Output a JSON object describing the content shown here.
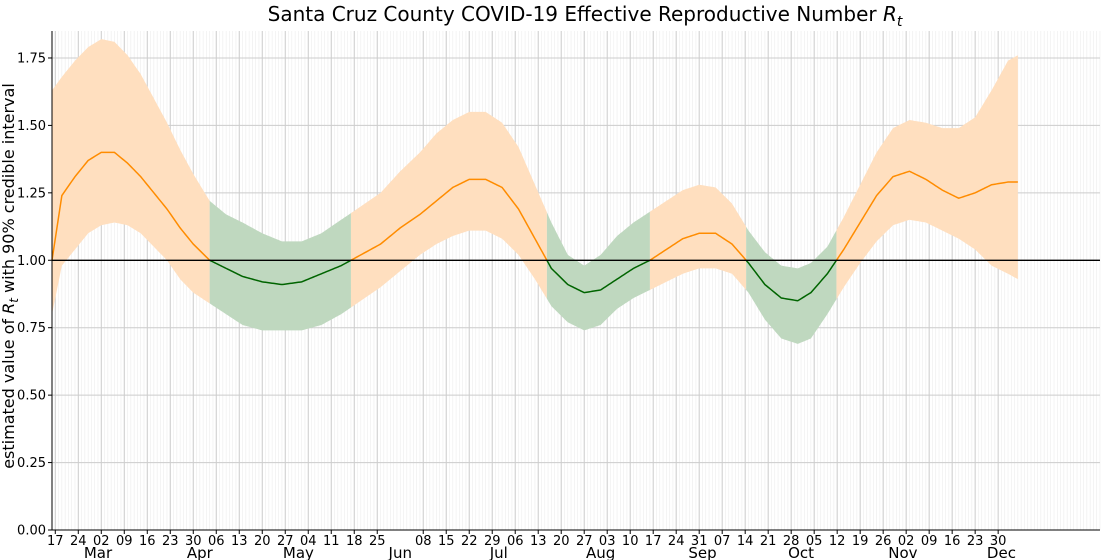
{
  "chart_data": {
    "type": "area",
    "title_prefix": "Santa Cruz County COVID-19 Effective Reproductive Number ",
    "title_symbol": "R",
    "title_subscript": "t",
    "ylabel_prefix": "estimated value of ",
    "ylabel_symbol": "R",
    "ylabel_subscript": "t",
    "ylabel_suffix": " with 90% credible interval",
    "ylim": [
      0,
      1.85
    ],
    "xlim": [
      "2020-02-16",
      "2020-12-31"
    ],
    "grid": true,
    "threshold": 1.0,
    "yticks": [
      "0.00",
      "0.25",
      "0.50",
      "0.75",
      "1.00",
      "1.25",
      "1.50",
      "1.75"
    ],
    "day_ticks": [
      {
        "date": "2020-02-17",
        "label": "17"
      },
      {
        "date": "2020-02-24",
        "label": "24"
      },
      {
        "date": "2020-03-02",
        "label": "02"
      },
      {
        "date": "2020-03-09",
        "label": "09"
      },
      {
        "date": "2020-03-16",
        "label": "16"
      },
      {
        "date": "2020-03-23",
        "label": "23"
      },
      {
        "date": "2020-03-30",
        "label": "30"
      },
      {
        "date": "2020-04-06",
        "label": "06"
      },
      {
        "date": "2020-04-13",
        "label": "13"
      },
      {
        "date": "2020-04-20",
        "label": "20"
      },
      {
        "date": "2020-04-27",
        "label": "27"
      },
      {
        "date": "2020-05-04",
        "label": "04"
      },
      {
        "date": "2020-05-11",
        "label": "11"
      },
      {
        "date": "2020-05-18",
        "label": "18"
      },
      {
        "date": "2020-05-25",
        "label": "25"
      },
      {
        "date": "2020-06-08",
        "label": "08"
      },
      {
        "date": "2020-06-15",
        "label": "15"
      },
      {
        "date": "2020-06-22",
        "label": "22"
      },
      {
        "date": "2020-06-29",
        "label": "29"
      },
      {
        "date": "2020-07-06",
        "label": "06"
      },
      {
        "date": "2020-07-13",
        "label": "13"
      },
      {
        "date": "2020-07-20",
        "label": "20"
      },
      {
        "date": "2020-07-27",
        "label": "27"
      },
      {
        "date": "2020-08-03",
        "label": "03"
      },
      {
        "date": "2020-08-10",
        "label": "10"
      },
      {
        "date": "2020-08-17",
        "label": "17"
      },
      {
        "date": "2020-08-24",
        "label": "24"
      },
      {
        "date": "2020-08-31",
        "label": "31"
      },
      {
        "date": "2020-09-07",
        "label": "07"
      },
      {
        "date": "2020-09-14",
        "label": "14"
      },
      {
        "date": "2020-09-21",
        "label": "21"
      },
      {
        "date": "2020-09-28",
        "label": "28"
      },
      {
        "date": "2020-10-05",
        "label": "05"
      },
      {
        "date": "2020-10-12",
        "label": "12"
      },
      {
        "date": "2020-10-19",
        "label": "19"
      },
      {
        "date": "2020-10-26",
        "label": "26"
      },
      {
        "date": "2020-11-02",
        "label": "02"
      },
      {
        "date": "2020-11-09",
        "label": "09"
      },
      {
        "date": "2020-11-16",
        "label": "16"
      },
      {
        "date": "2020-11-23",
        "label": "23"
      },
      {
        "date": "2020-11-30",
        "label": "30"
      }
    ],
    "month_ticks": [
      {
        "date": "2020-03-01",
        "label": "Mar"
      },
      {
        "date": "2020-04-01",
        "label": "Apr"
      },
      {
        "date": "2020-05-01",
        "label": "May"
      },
      {
        "date": "2020-06-01",
        "label": "Jun"
      },
      {
        "date": "2020-07-01",
        "label": "Jul"
      },
      {
        "date": "2020-08-01",
        "label": "Aug"
      },
      {
        "date": "2020-09-01",
        "label": "Sep"
      },
      {
        "date": "2020-10-01",
        "label": "Oct"
      },
      {
        "date": "2020-11-01",
        "label": "Nov"
      },
      {
        "date": "2020-12-01",
        "label": "Dec"
      }
    ],
    "colors": {
      "above_line": "#ff8c00",
      "above_band": "#ffdfbf",
      "below_line": "#006400",
      "below_band": "#bfd8bf",
      "threshold_line": "#000000"
    },
    "series": [
      {
        "name": "",
        "points": [
          [
            "2020-02-16",
            1.0,
            0.8,
            1.63
          ],
          [
            "2020-02-19",
            1.24,
            0.98,
            1.68
          ],
          [
            "2020-02-23",
            1.31,
            1.04,
            1.74
          ],
          [
            "2020-02-27",
            1.37,
            1.1,
            1.79
          ],
          [
            "2020-03-02",
            1.4,
            1.13,
            1.82
          ],
          [
            "2020-03-06",
            1.4,
            1.14,
            1.81
          ],
          [
            "2020-03-10",
            1.36,
            1.13,
            1.76
          ],
          [
            "2020-03-14",
            1.31,
            1.1,
            1.69
          ],
          [
            "2020-03-18",
            1.25,
            1.05,
            1.6
          ],
          [
            "2020-03-22",
            1.19,
            1.0,
            1.51
          ],
          [
            "2020-03-26",
            1.12,
            0.93,
            1.41
          ],
          [
            "2020-03-30",
            1.06,
            0.88,
            1.32
          ],
          [
            "2020-04-04",
            1.0,
            0.84,
            1.22
          ],
          [
            "2020-04-09",
            0.97,
            0.8,
            1.17
          ],
          [
            "2020-04-14",
            0.94,
            0.76,
            1.14
          ],
          [
            "2020-04-20",
            0.92,
            0.74,
            1.1
          ],
          [
            "2020-04-26",
            0.91,
            0.74,
            1.07
          ],
          [
            "2020-05-02",
            0.92,
            0.74,
            1.07
          ],
          [
            "2020-05-08",
            0.95,
            0.76,
            1.1
          ],
          [
            "2020-05-14",
            0.98,
            0.8,
            1.15
          ],
          [
            "2020-05-20",
            1.02,
            0.85,
            1.2
          ],
          [
            "2020-05-26",
            1.06,
            0.9,
            1.25
          ],
          [
            "2020-06-01",
            1.12,
            0.96,
            1.33
          ],
          [
            "2020-06-07",
            1.17,
            1.02,
            1.4
          ],
          [
            "2020-06-12",
            1.22,
            1.06,
            1.47
          ],
          [
            "2020-06-17",
            1.27,
            1.09,
            1.52
          ],
          [
            "2020-06-22",
            1.3,
            1.11,
            1.55
          ],
          [
            "2020-06-27",
            1.3,
            1.11,
            1.55
          ],
          [
            "2020-07-02",
            1.27,
            1.08,
            1.51
          ],
          [
            "2020-07-07",
            1.19,
            1.02,
            1.42
          ],
          [
            "2020-07-12",
            1.08,
            0.93,
            1.28
          ],
          [
            "2020-07-17",
            0.97,
            0.83,
            1.14
          ],
          [
            "2020-07-22",
            0.91,
            0.77,
            1.02
          ],
          [
            "2020-07-27",
            0.88,
            0.74,
            0.98
          ],
          [
            "2020-08-01",
            0.89,
            0.76,
            1.02
          ],
          [
            "2020-08-06",
            0.93,
            0.82,
            1.09
          ],
          [
            "2020-08-11",
            0.97,
            0.86,
            1.14
          ],
          [
            "2020-08-16",
            1.0,
            0.89,
            1.18
          ],
          [
            "2020-08-21",
            1.04,
            0.92,
            1.22
          ],
          [
            "2020-08-26",
            1.08,
            0.95,
            1.26
          ],
          [
            "2020-08-31",
            1.1,
            0.97,
            1.28
          ],
          [
            "2020-09-05",
            1.1,
            0.97,
            1.27
          ],
          [
            "2020-09-10",
            1.06,
            0.95,
            1.21
          ],
          [
            "2020-09-15",
            0.99,
            0.88,
            1.11
          ],
          [
            "2020-09-20",
            0.91,
            0.78,
            1.03
          ],
          [
            "2020-09-25",
            0.86,
            0.71,
            0.98
          ],
          [
            "2020-09-30",
            0.85,
            0.69,
            0.97
          ],
          [
            "2020-10-04",
            0.88,
            0.71,
            0.99
          ],
          [
            "2020-10-09",
            0.95,
            0.8,
            1.05
          ],
          [
            "2020-10-14",
            1.04,
            0.9,
            1.16
          ],
          [
            "2020-10-19",
            1.14,
            0.99,
            1.28
          ],
          [
            "2020-10-24",
            1.24,
            1.07,
            1.4
          ],
          [
            "2020-10-29",
            1.31,
            1.13,
            1.49
          ],
          [
            "2020-11-03",
            1.33,
            1.15,
            1.52
          ],
          [
            "2020-11-08",
            1.3,
            1.14,
            1.51
          ],
          [
            "2020-11-13",
            1.26,
            1.11,
            1.49
          ],
          [
            "2020-11-18",
            1.23,
            1.08,
            1.49
          ],
          [
            "2020-11-23",
            1.25,
            1.04,
            1.53
          ],
          [
            "2020-11-28",
            1.28,
            0.98,
            1.63
          ],
          [
            "2020-12-03",
            1.29,
            0.95,
            1.74
          ],
          [
            "2020-12-06",
            1.29,
            0.93,
            1.76
          ]
        ]
      }
    ]
  }
}
